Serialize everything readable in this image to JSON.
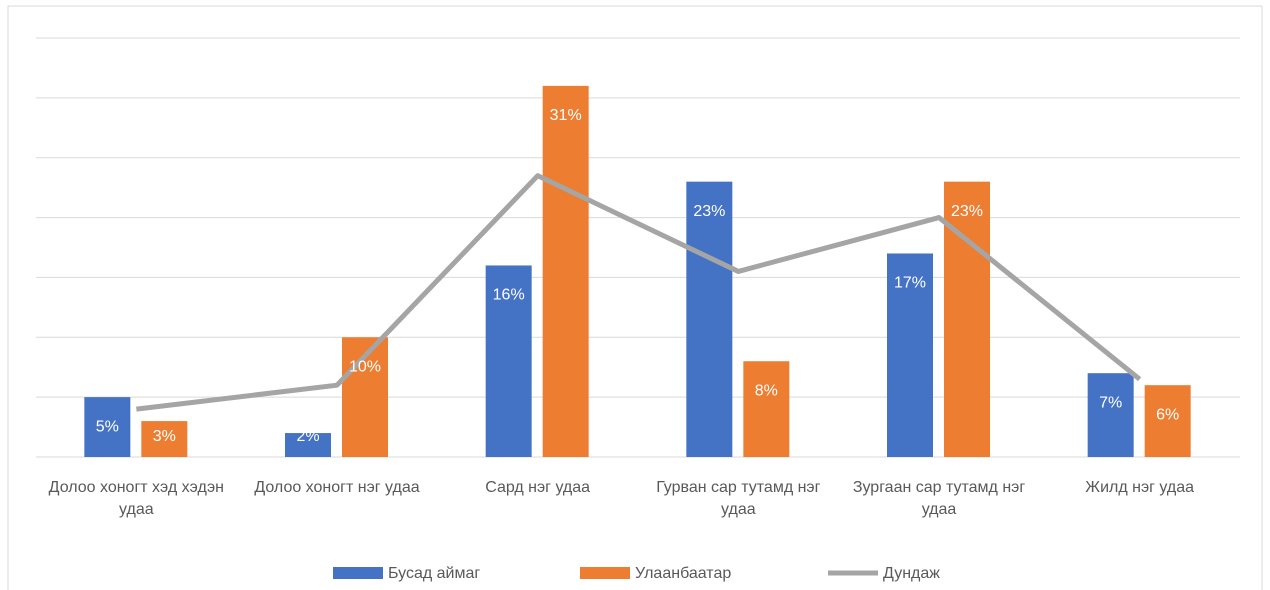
{
  "chart_data": {
    "type": "bar",
    "categories": [
      "Долоо хоногт хэд хэдэн удаа",
      "Долоо хоногт нэг удаа",
      "Сард нэг удаа",
      "Гурван сар тутамд нэг удаа",
      "Зургаан сар тутамд нэг удаа",
      "Жилд нэг удаа"
    ],
    "series": [
      {
        "name": "Бусад аймаг",
        "color": "#4472c4",
        "values": [
          5,
          2,
          16,
          23,
          17,
          7
        ],
        "value_labels": [
          "5%",
          "2%",
          "16%",
          "23%",
          "17%",
          "7%"
        ]
      },
      {
        "name": "Улаанбаатар",
        "color": "#ed7d31",
        "values": [
          3,
          10,
          31,
          8,
          23,
          6
        ],
        "value_labels": [
          "3%",
          "10%",
          "31%",
          "8%",
          "23%",
          "6%"
        ]
      },
      {
        "name": "Дундаж",
        "type": "line",
        "color": "#a5a5a5",
        "values": [
          4,
          6,
          23.5,
          15.5,
          20,
          6.5
        ]
      }
    ],
    "ylim": [
      0,
      35
    ],
    "yticks": [
      0,
      5,
      10,
      15,
      20,
      25,
      30,
      35
    ],
    "grid": true,
    "legend": "bottom"
  }
}
